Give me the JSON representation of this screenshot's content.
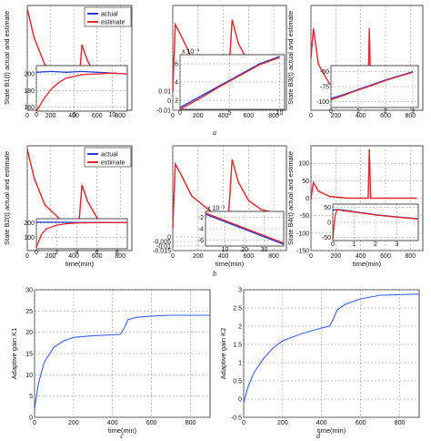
{
  "colors": {
    "actual": "#1f3fd6",
    "estimate": "#e8262a",
    "gain": "#3a5ef0",
    "grid": "#8a8a8a"
  },
  "captions": [
    "a",
    "b",
    "c",
    "d"
  ],
  "chart_data": [
    {
      "id": "a1",
      "type": "line",
      "ylabel": "State B1(t) actual and estimate",
      "xlabel": "",
      "xlim": [
        0,
        900
      ],
      "ylim": [
        50,
        210
      ],
      "xticks": [
        0,
        200,
        400,
        600,
        800
      ],
      "legend": [
        "actual",
        "estimate"
      ],
      "legend_position": "top-right",
      "series": [
        {
          "name": "actual",
          "x": [
            0,
            60,
            150,
            300,
            440,
            470,
            520,
            600,
            700,
            850
          ],
          "y": [
            205,
            160,
            120,
            95,
            80,
            150,
            125,
            100,
            85,
            80
          ]
        },
        {
          "name": "estimate",
          "x": [
            0,
            60,
            150,
            300,
            440,
            470,
            520,
            600,
            700,
            850
          ],
          "y": [
            205,
            160,
            120,
            95,
            80,
            150,
            125,
            100,
            85,
            80
          ]
        }
      ],
      "inset": {
        "xlim": [
          0,
          12
        ],
        "ylim": [
          155,
          210
        ],
        "xticks": [
          0,
          5,
          10
        ],
        "yticks": [
          160,
          180,
          200
        ],
        "series": [
          {
            "name": "actual",
            "x": [
              0,
              2,
              4,
              6,
              8,
              10,
              12
            ],
            "y": [
              202,
              203,
              202,
              203,
              202,
              201,
              200
            ]
          },
          {
            "name": "estimate",
            "x": [
              0,
              1,
              2,
              3,
              4,
              6,
              8,
              10,
              12
            ],
            "y": [
              155,
              170,
              182,
              190,
              195,
              199,
              200,
              201,
              200
            ]
          }
        ]
      }
    },
    {
      "id": "a2",
      "type": "line",
      "xlabel": "",
      "ylabel": "",
      "xlim": [
        0,
        900
      ],
      "ylim": [
        -0.01,
        0.1
      ],
      "xticks": [
        0,
        200,
        400,
        600,
        800
      ],
      "yticks": [
        -0.01,
        0,
        0.01
      ],
      "series": [
        {
          "name": "actual",
          "x": [
            0,
            20,
            60,
            150,
            300,
            440,
            470,
            520,
            600,
            700,
            850
          ],
          "y": [
            0.01,
            0.08,
            0.07,
            0.045,
            0.028,
            0.02,
            0.085,
            0.06,
            0.04,
            0.03,
            0.025
          ]
        },
        {
          "name": "estimate",
          "x": [
            0,
            20,
            60,
            150,
            300,
            440,
            470,
            520,
            600,
            700,
            850
          ],
          "y": [
            0.01,
            0.08,
            0.07,
            0.045,
            0.028,
            0.02,
            0.085,
            0.06,
            0.04,
            0.03,
            0.025
          ]
        }
      ],
      "inset": {
        "xlim": [
          0,
          10.5
        ],
        "ylim": [
          1,
          7
        ],
        "xticks": [
          0,
          5,
          10
        ],
        "yticks": [
          2,
          4,
          6
        ],
        "exponent": "x 10⁻³",
        "series": [
          {
            "name": "actual",
            "x": [
              0,
              2,
              4,
              6,
              8,
              10
            ],
            "y": [
              1.2,
              2.4,
              3.6,
              4.8,
              6.0,
              6.8
            ]
          },
          {
            "name": "estimate",
            "x": [
              0,
              2,
              4,
              6,
              8,
              10
            ],
            "y": [
              1.0,
              2.2,
              3.5,
              4.7,
              5.9,
              6.7
            ]
          }
        ]
      }
    },
    {
      "id": "a3",
      "type": "line",
      "ylabel": "State B3(t) actual and estimate",
      "xlabel": "",
      "xlim": [
        0,
        900
      ],
      "ylim": [
        50,
        210
      ],
      "xticks": [
        0,
        200,
        400,
        600,
        800
      ],
      "series": [
        {
          "name": "actual",
          "x": [
            0,
            20,
            60,
            150,
            300,
            440,
            460,
            470,
            480,
            500,
            850
          ],
          "y": [
            130,
            175,
            120,
            90,
            85,
            85,
            85,
            175,
            85,
            85,
            85
          ]
        },
        {
          "name": "estimate",
          "x": [
            0,
            20,
            60,
            150,
            300,
            440,
            460,
            470,
            480,
            500,
            850
          ],
          "y": [
            130,
            175,
            120,
            90,
            85,
            85,
            85,
            175,
            85,
            85,
            85
          ]
        }
      ],
      "inset": {
        "xlim": [
          0,
          3.2
        ],
        "ylim": [
          -110,
          -40
        ],
        "xticks": [
          0,
          1,
          2,
          3
        ],
        "yticks": [
          -100,
          -75,
          -50
        ],
        "series": [
          {
            "name": "actual",
            "x": [
              0,
              0.5,
              1,
              1.5,
              2,
              2.5,
              3
            ],
            "y": [
              -95,
              -88,
              -80,
              -72,
              -64,
              -57,
              -50
            ]
          },
          {
            "name": "estimate",
            "x": [
              0,
              0.5,
              1,
              1.5,
              2,
              2.5,
              3
            ],
            "y": [
              -97,
              -89,
              -81,
              -73,
              -65,
              -58,
              -51
            ]
          }
        ]
      }
    },
    {
      "id": "b1",
      "type": "line",
      "ylabel": "State B2(t) actual and estimate",
      "xlabel": "time(min)",
      "xlim": [
        0,
        900
      ],
      "ylim": [
        50,
        210
      ],
      "xticks": [
        0,
        200,
        400,
        600,
        800
      ],
      "legend": [
        "actual",
        "estimate"
      ],
      "legend_position": "top-right",
      "series": [
        {
          "name": "actual",
          "x": [
            0,
            60,
            150,
            300,
            440,
            470,
            520,
            600,
            700,
            850
          ],
          "y": [
            205,
            160,
            120,
            95,
            80,
            150,
            125,
            100,
            85,
            80
          ]
        },
        {
          "name": "estimate",
          "x": [
            0,
            60,
            150,
            300,
            440,
            470,
            520,
            600,
            700,
            850
          ],
          "y": [
            205,
            160,
            120,
            95,
            80,
            150,
            125,
            100,
            85,
            80
          ]
        }
      ],
      "inset": {
        "xlim": [
          0,
          9
        ],
        "ylim": [
          20,
          230
        ],
        "xticks": [
          0,
          2,
          4,
          6,
          8
        ],
        "yticks": [
          100,
          200
        ],
        "series": [
          {
            "name": "actual",
            "x": [
              0,
              2,
              4,
              6,
              8,
              9
            ],
            "y": [
              205,
              205,
              204,
              204,
              203,
              203
            ]
          },
          {
            "name": "estimate",
            "x": [
              0,
              0.5,
              1,
              2,
              3,
              4,
              6,
              9
            ],
            "y": [
              30,
              120,
              160,
              185,
              195,
              200,
              202,
              202
            ]
          }
        ]
      }
    },
    {
      "id": "b2",
      "type": "line",
      "xlabel": "time(min)",
      "ylabel": "",
      "xlim": [
        0,
        900
      ],
      "ylim": [
        -0.015,
        0.1
      ],
      "xticks": [
        0,
        200,
        400,
        600,
        800
      ],
      "yticks": [
        -0.015,
        -0.01,
        -0.005,
        0
      ],
      "series": [
        {
          "name": "actual",
          "x": [
            0,
            20,
            60,
            150,
            300,
            440,
            470,
            520,
            600,
            700,
            850
          ],
          "y": [
            0.01,
            0.08,
            0.07,
            0.045,
            0.028,
            0.02,
            0.085,
            0.06,
            0.04,
            0.03,
            0.025
          ]
        },
        {
          "name": "estimate",
          "x": [
            0,
            20,
            60,
            150,
            300,
            440,
            470,
            520,
            600,
            700,
            850
          ],
          "y": [
            0.01,
            0.08,
            0.07,
            0.045,
            0.028,
            0.02,
            0.085,
            0.06,
            0.04,
            0.03,
            0.025
          ]
        }
      ],
      "inset": {
        "xlim": [
          0,
          40
        ],
        "ylim": [
          -7,
          -1
        ],
        "xticks": [
          10,
          20,
          30
        ],
        "yticks": [
          -6,
          -4,
          -2
        ],
        "exponent": "x 10⁻³",
        "series": [
          {
            "name": "actual",
            "x": [
              0,
              10,
              20,
              30,
              40
            ],
            "y": [
              -1.5,
              -2.8,
              -4.1,
              -5.4,
              -6.7
            ]
          },
          {
            "name": "estimate",
            "x": [
              0,
              10,
              20,
              30,
              40
            ],
            "y": [
              -1.3,
              -2.6,
              -3.9,
              -5.2,
              -6.5
            ]
          }
        ]
      }
    },
    {
      "id": "b3",
      "type": "line",
      "ylabel": "State B4(t) actual and estimate",
      "xlabel": "time(min)",
      "xlim": [
        0,
        900
      ],
      "ylim": [
        -150,
        150
      ],
      "xticks": [
        0,
        200,
        400,
        600,
        800
      ],
      "yticks": [
        -150,
        -100,
        -50,
        0,
        50,
        100
      ],
      "series": [
        {
          "name": "actual",
          "x": [
            0,
            20,
            60,
            150,
            300,
            440,
            460,
            470,
            480,
            500,
            850
          ],
          "y": [
            0,
            45,
            20,
            5,
            0,
            0,
            0,
            140,
            0,
            0,
            0
          ]
        },
        {
          "name": "estimate",
          "x": [
            0,
            20,
            60,
            150,
            300,
            440,
            460,
            470,
            480,
            500,
            850
          ],
          "y": [
            0,
            45,
            20,
            5,
            0,
            0,
            0,
            140,
            0,
            0,
            0
          ]
        }
      ],
      "inset": {
        "xlim": [
          0,
          4
        ],
        "ylim": [
          -60,
          60
        ],
        "xticks": [
          0,
          1,
          2,
          3
        ],
        "yticks": [
          -50,
          0,
          50
        ],
        "series": [
          {
            "name": "actual",
            "x": [
              0,
              0.2,
              0.5,
              1,
              2,
              3,
              4
            ],
            "y": [
              40,
              42,
              40,
              35,
              25,
              18,
              12
            ]
          },
          {
            "name": "estimate",
            "x": [
              0,
              0.1,
              0.2,
              0.5,
              1,
              2,
              3,
              4
            ],
            "y": [
              -55,
              20,
              42,
              38,
              34,
              24,
              17,
              11
            ]
          }
        ]
      }
    },
    {
      "id": "c",
      "type": "line",
      "ylabel": "Adaptive gain K1",
      "xlabel": "time(min)",
      "xlim": [
        0,
        900
      ],
      "ylim": [
        0,
        30
      ],
      "xticks": [
        0,
        200,
        400,
        600,
        800
      ],
      "yticks": [
        0,
        5,
        10,
        15,
        20,
        25,
        30
      ],
      "series": [
        {
          "name": "K1",
          "x": [
            0,
            20,
            50,
            100,
            150,
            200,
            300,
            400,
            440,
            460,
            480,
            520,
            600,
            700,
            900
          ],
          "y": [
            2,
            8,
            13,
            16.5,
            18,
            18.8,
            19.2,
            19.4,
            19.5,
            21,
            23,
            23.5,
            23.8,
            24,
            24
          ]
        }
      ]
    },
    {
      "id": "d",
      "type": "line",
      "ylabel": "Adaptive gain K2",
      "xlabel": "time(min)",
      "xlim": [
        0,
        900
      ],
      "ylim": [
        -0.5,
        3
      ],
      "xticks": [
        0,
        200,
        400,
        600,
        800
      ],
      "yticks": [
        -0.5,
        0,
        0.5,
        1,
        1.5,
        2,
        2.5,
        3
      ],
      "series": [
        {
          "name": "K2",
          "x": [
            0,
            20,
            50,
            100,
            150,
            200,
            300,
            400,
            440,
            460,
            480,
            520,
            600,
            700,
            900
          ],
          "y": [
            -0.1,
            0.3,
            0.7,
            1.1,
            1.4,
            1.6,
            1.8,
            1.95,
            2.0,
            2.2,
            2.45,
            2.6,
            2.75,
            2.85,
            2.88
          ]
        }
      ]
    }
  ]
}
